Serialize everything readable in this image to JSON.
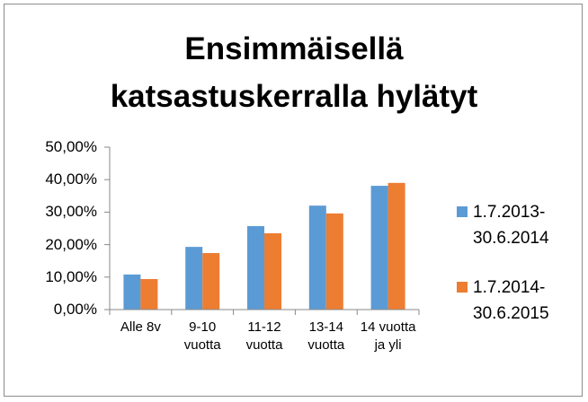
{
  "chart_data": {
    "type": "bar",
    "title": "Ensimmäisellä katsastuskerralla hylätyt",
    "categories": [
      "Alle 8v",
      "9-10 vuotta",
      "11-12 vuotta",
      "13-14 vuotta",
      "14 vuotta ja yli"
    ],
    "series": [
      {
        "name": "1.7.2013-30.6.2014",
        "color": "#5b9bd5",
        "values": [
          10.8,
          19.3,
          25.7,
          32.0,
          38.1
        ]
      },
      {
        "name": "1.7.2014-30.6.2015",
        "color": "#ed7d31",
        "values": [
          9.4,
          17.4,
          23.5,
          29.6,
          39.0
        ]
      }
    ],
    "ylim": [
      0,
      50
    ],
    "yticks": [
      {
        "value": 0,
        "label": "0,00%"
      },
      {
        "value": 10,
        "label": "10,00%"
      },
      {
        "value": 20,
        "label": "20,00%"
      },
      {
        "value": 30,
        "label": "30,00%"
      },
      {
        "value": 40,
        "label": "40,00%"
      },
      {
        "value": 50,
        "label": "50,00%"
      }
    ],
    "grid": false,
    "legend": "right"
  }
}
